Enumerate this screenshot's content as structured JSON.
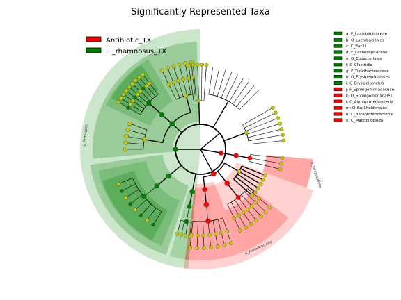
{
  "chart_data": {
    "type": "cladogram",
    "title": "Significantly Represented Taxa",
    "groups": [
      {
        "name": "Antibiotic_TX",
        "color": "#ff0000"
      },
      {
        "name": "L._rhamnosus_TX",
        "color": "#008000"
      }
    ],
    "biomarker_key": [
      {
        "label": "a: F_Lactobacillaceae",
        "group": "L._rhamnosus_TX"
      },
      {
        "label": "b: O_Lactobacillales",
        "group": "L._rhamnosus_TX"
      },
      {
        "label": "c: C_Bacilli",
        "group": "L._rhamnosus_TX"
      },
      {
        "label": "d: F_Lachnospiraceae",
        "group": "L._rhamnosus_TX"
      },
      {
        "label": "e: O_Eubacteriales",
        "group": "L._rhamnosus_TX"
      },
      {
        "label": "f: C_Clostridia",
        "group": "L._rhamnosus_TX"
      },
      {
        "label": "g: F_Turicibacteraceae",
        "group": "L._rhamnosus_TX"
      },
      {
        "label": "h: O_Erysipelotrichales",
        "group": "L._rhamnosus_TX"
      },
      {
        "label": "i: C_Erysipelotrichia",
        "group": "L._rhamnosus_TX"
      },
      {
        "label": "j: F_Sphingomonadaceae",
        "group": "Antibiotic_TX"
      },
      {
        "label": "k: O_Sphingomonadales",
        "group": "Antibiotic_TX"
      },
      {
        "label": "l: C_Alphaproteobacteria",
        "group": "Antibiotic_TX"
      },
      {
        "label": "m: O_Burkholderiales",
        "group": "Antibiotic_TX"
      },
      {
        "label": "n: C_Betaproteobacteria",
        "group": "Antibiotic_TX"
      },
      {
        "label": "o: C_Magnoliopsida",
        "group": "Antibiotic_TX"
      }
    ],
    "phylum_labels": [
      "p_Firmicutes",
      "p_Proteobacteria",
      "p_Streptophyta"
    ],
    "node_colors": {
      "neutral": "#c8c800",
      "Antibiotic_TX": "#ff0000",
      "L._rhamnosus_TX": "#008000"
    }
  }
}
